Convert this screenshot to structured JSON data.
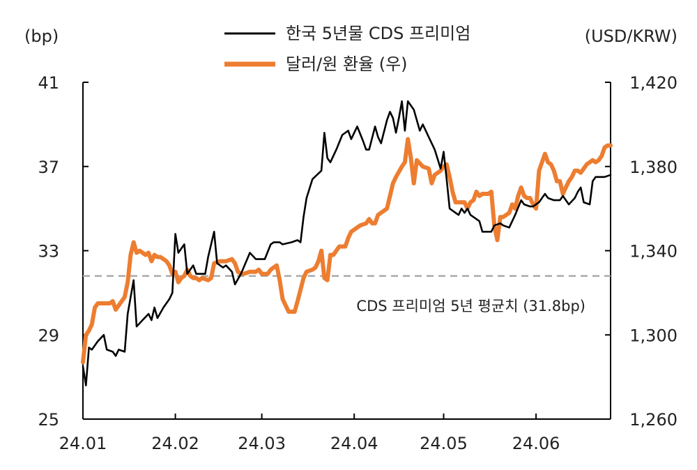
{
  "chart_data": {
    "type": "line",
    "left_unit": "(bp)",
    "right_unit": "(USD/KRW)",
    "x_tick_labels": [
      "24.01",
      "24.02",
      "24.03",
      "24.04",
      "24.05",
      "24.06"
    ],
    "x_tick_days": [
      0,
      31,
      60,
      91,
      121,
      152
    ],
    "x_range_days": [
      0,
      177
    ],
    "y_left": {
      "range": [
        25,
        41
      ],
      "ticks": [
        "25",
        "29",
        "33",
        "37",
        "41"
      ],
      "tick_values": [
        25,
        29,
        33,
        37,
        41
      ]
    },
    "y_right": {
      "range": [
        1260,
        1420
      ],
      "ticks": [
        "1,260",
        "1,300",
        "1,340",
        "1,380",
        "1,420"
      ],
      "tick_values": [
        1260,
        1300,
        1340,
        1380,
        1420
      ]
    },
    "legend_position": "top-center",
    "series": [
      {
        "name": "한국 5년물 CDS 프리미엄",
        "axis": "left",
        "color": "#000000",
        "points": [
          [
            0,
            27.5
          ],
          [
            1,
            26.6
          ],
          [
            2,
            28.4
          ],
          [
            3,
            28.3
          ],
          [
            5,
            28.7
          ],
          [
            7,
            29.0
          ],
          [
            8,
            28.3
          ],
          [
            10,
            28.2
          ],
          [
            11,
            28.0
          ],
          [
            12,
            28.3
          ],
          [
            14,
            28.2
          ],
          [
            15,
            30.0
          ],
          [
            17,
            31.6
          ],
          [
            18,
            29.4
          ],
          [
            20,
            29.7
          ],
          [
            22,
            30.0
          ],
          [
            23,
            29.7
          ],
          [
            24,
            30.3
          ],
          [
            25,
            29.8
          ],
          [
            27,
            30.3
          ],
          [
            29,
            30.7
          ],
          [
            30,
            31.0
          ],
          [
            31,
            33.8
          ],
          [
            32,
            32.9
          ],
          [
            34,
            33.3
          ],
          [
            35,
            31.9
          ],
          [
            37,
            32.3
          ],
          [
            38,
            31.9
          ],
          [
            41,
            31.9
          ],
          [
            42,
            32.7
          ],
          [
            44,
            33.9
          ],
          [
            45,
            32.4
          ],
          [
            47,
            32.2
          ],
          [
            48,
            32.3
          ],
          [
            50,
            32.0
          ],
          [
            51,
            31.4
          ],
          [
            53,
            31.9
          ],
          [
            56,
            32.9
          ],
          [
            58,
            32.6
          ],
          [
            61,
            32.6
          ],
          [
            63,
            33.3
          ],
          [
            64,
            33.4
          ],
          [
            66,
            33.4
          ],
          [
            67,
            33.3
          ],
          [
            70,
            33.4
          ],
          [
            72,
            33.5
          ],
          [
            73,
            33.4
          ],
          [
            74,
            34.6
          ],
          [
            75,
            35.5
          ],
          [
            77,
            36.4
          ],
          [
            80,
            36.8
          ],
          [
            81,
            38.6
          ],
          [
            82,
            37.4
          ],
          [
            83,
            37.2
          ],
          [
            85,
            37.8
          ],
          [
            87,
            38.5
          ],
          [
            89,
            38.7
          ],
          [
            90,
            38.3
          ],
          [
            91,
            38.6
          ],
          [
            92,
            38.9
          ],
          [
            94,
            38.2
          ],
          [
            95,
            37.8
          ],
          [
            96,
            37.8
          ],
          [
            98,
            38.9
          ],
          [
            99,
            38.4
          ],
          [
            100,
            38.1
          ],
          [
            102,
            39.2
          ],
          [
            103,
            39.6
          ],
          [
            104,
            39.3
          ],
          [
            105,
            38.6
          ],
          [
            106,
            39.3
          ],
          [
            107,
            40.1
          ],
          [
            108,
            38.7
          ],
          [
            109,
            40.1
          ],
          [
            111,
            39.7
          ],
          [
            113,
            38.7
          ],
          [
            114,
            39.0
          ],
          [
            116,
            38.4
          ],
          [
            118,
            37.8
          ],
          [
            120,
            36.9
          ],
          [
            121,
            37.7
          ],
          [
            122,
            36.4
          ],
          [
            123,
            35.0
          ],
          [
            125,
            34.8
          ],
          [
            126,
            34.7
          ],
          [
            127,
            35.0
          ],
          [
            128,
            34.8
          ],
          [
            129,
            35.0
          ],
          [
            130,
            34.7
          ],
          [
            131,
            34.6
          ],
          [
            133,
            34.4
          ],
          [
            134,
            33.9
          ],
          [
            136,
            33.9
          ],
          [
            137,
            33.9
          ],
          [
            138,
            34.2
          ],
          [
            140,
            34.3
          ],
          [
            141,
            34.2
          ],
          [
            143,
            34.1
          ],
          [
            145,
            34.7
          ],
          [
            147,
            35.4
          ],
          [
            148,
            35.2
          ],
          [
            150,
            35.1
          ],
          [
            151,
            35.1
          ],
          [
            153,
            35.3
          ],
          [
            154,
            35.5
          ],
          [
            155,
            35.7
          ],
          [
            156,
            35.5
          ],
          [
            158,
            35.4
          ],
          [
            160,
            35.4
          ],
          [
            161,
            35.6
          ],
          [
            163,
            35.2
          ],
          [
            165,
            35.5
          ],
          [
            166,
            35.8
          ],
          [
            167,
            36.0
          ],
          [
            168,
            35.3
          ],
          [
            170,
            35.2
          ],
          [
            171,
            36.3
          ],
          [
            172,
            36.5
          ],
          [
            173,
            36.5
          ],
          [
            175,
            36.5
          ],
          [
            177,
            36.6
          ]
        ]
      },
      {
        "name": "달러/원 환율 (우)",
        "axis": "right",
        "color": "#ED7D31",
        "points": [
          [
            0,
            1287
          ],
          [
            1,
            1300
          ],
          [
            2,
            1302
          ],
          [
            3,
            1305
          ],
          [
            4,
            1313
          ],
          [
            5,
            1315
          ],
          [
            6,
            1315
          ],
          [
            7,
            1315
          ],
          [
            8,
            1315
          ],
          [
            9,
            1315
          ],
          [
            10,
            1316
          ],
          [
            11,
            1312
          ],
          [
            12,
            1314
          ],
          [
            13,
            1316
          ],
          [
            14,
            1318
          ],
          [
            15,
            1325
          ],
          [
            16,
            1338
          ],
          [
            17,
            1344
          ],
          [
            18,
            1339
          ],
          [
            19,
            1340
          ],
          [
            20,
            1339
          ],
          [
            21,
            1338
          ],
          [
            22,
            1339
          ],
          [
            23,
            1335
          ],
          [
            24,
            1338
          ],
          [
            25,
            1337
          ],
          [
            26,
            1337
          ],
          [
            27,
            1336
          ],
          [
            28,
            1335
          ],
          [
            29,
            1333
          ],
          [
            30,
            1329
          ],
          [
            31,
            1330
          ],
          [
            32,
            1325
          ],
          [
            33,
            1327
          ],
          [
            34,
            1328
          ],
          [
            35,
            1331
          ],
          [
            36,
            1328
          ],
          [
            37,
            1327
          ],
          [
            38,
            1327
          ],
          [
            39,
            1326
          ],
          [
            40,
            1327
          ],
          [
            42,
            1326
          ],
          [
            43,
            1327
          ],
          [
            44,
            1334
          ],
          [
            46,
            1335
          ],
          [
            48,
            1335
          ],
          [
            50,
            1336
          ],
          [
            51,
            1334
          ],
          [
            52,
            1330
          ],
          [
            53,
            1329
          ],
          [
            54,
            1329
          ],
          [
            56,
            1330
          ],
          [
            58,
            1330
          ],
          [
            59,
            1331
          ],
          [
            60,
            1329
          ],
          [
            62,
            1329
          ],
          [
            63,
            1331
          ],
          [
            64,
            1332
          ],
          [
            65,
            1333
          ],
          [
            66,
            1326
          ],
          [
            67,
            1317
          ],
          [
            69,
            1311
          ],
          [
            71,
            1311
          ],
          [
            72,
            1316
          ],
          [
            74,
            1327
          ],
          [
            75,
            1330
          ],
          [
            77,
            1331
          ],
          [
            78,
            1332
          ],
          [
            79,
            1335
          ],
          [
            80,
            1340
          ],
          [
            81,
            1327
          ],
          [
            82,
            1326
          ],
          [
            83,
            1338
          ],
          [
            84,
            1338
          ],
          [
            85,
            1340
          ],
          [
            86,
            1342
          ],
          [
            88,
            1342
          ],
          [
            89,
            1346
          ],
          [
            90,
            1349
          ],
          [
            91,
            1350
          ],
          [
            93,
            1352
          ],
          [
            95,
            1353
          ],
          [
            96,
            1355
          ],
          [
            97,
            1353
          ],
          [
            98,
            1353
          ],
          [
            99,
            1357
          ],
          [
            100,
            1358
          ],
          [
            102,
            1360
          ],
          [
            103,
            1366
          ],
          [
            104,
            1372
          ],
          [
            105,
            1375
          ],
          [
            107,
            1380
          ],
          [
            108,
            1382
          ],
          [
            109,
            1393
          ],
          [
            110,
            1384
          ],
          [
            111,
            1372
          ],
          [
            112,
            1383
          ],
          [
            114,
            1380
          ],
          [
            116,
            1379
          ],
          [
            117,
            1372
          ],
          [
            118,
            1376
          ],
          [
            119,
            1377
          ],
          [
            120,
            1378
          ],
          [
            121,
            1380
          ],
          [
            122,
            1381
          ],
          [
            123,
            1375
          ],
          [
            124,
            1368
          ],
          [
            125,
            1363
          ],
          [
            126,
            1363
          ],
          [
            128,
            1363
          ],
          [
            129,
            1360
          ],
          [
            130,
            1363
          ],
          [
            131,
            1364
          ],
          [
            132,
            1368
          ],
          [
            133,
            1366
          ],
          [
            134,
            1367
          ],
          [
            136,
            1367
          ],
          [
            137,
            1368
          ],
          [
            138,
            1352
          ],
          [
            139,
            1345
          ],
          [
            140,
            1356
          ],
          [
            141,
            1356
          ],
          [
            143,
            1358
          ],
          [
            144,
            1362
          ],
          [
            145,
            1360
          ],
          [
            146,
            1366
          ],
          [
            147,
            1370
          ],
          [
            148,
            1366
          ],
          [
            149,
            1365
          ],
          [
            150,
            1365
          ],
          [
            151,
            1362
          ],
          [
            152,
            1360
          ],
          [
            153,
            1378
          ],
          [
            154,
            1382
          ],
          [
            155,
            1386
          ],
          [
            156,
            1382
          ],
          [
            157,
            1381
          ],
          [
            158,
            1378
          ],
          [
            159,
            1373
          ],
          [
            160,
            1373
          ],
          [
            161,
            1367
          ],
          [
            162,
            1370
          ],
          [
            163,
            1373
          ],
          [
            164,
            1375
          ],
          [
            165,
            1378
          ],
          [
            166,
            1378
          ],
          [
            167,
            1377
          ],
          [
            168,
            1379
          ],
          [
            169,
            1381
          ],
          [
            170,
            1382
          ],
          [
            171,
            1383
          ],
          [
            172,
            1382
          ],
          [
            173,
            1383
          ],
          [
            174,
            1385
          ],
          [
            175,
            1389
          ],
          [
            176,
            1390
          ],
          [
            177,
            1390
          ]
        ]
      }
    ],
    "reference_line": {
      "label": "CDS 프리미엄 5년 평균치 (31.8bp)",
      "axis": "left",
      "value": 31.8,
      "color": "#AAAAAA",
      "style": "dashed"
    }
  }
}
